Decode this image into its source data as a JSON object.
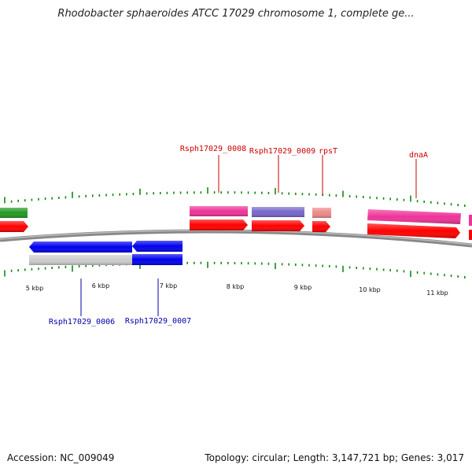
{
  "title": "Rhodobacter sphaeroides ATCC 17029 chromosome 1, complete ge...",
  "footer": {
    "accession": "Accession: NC_009049",
    "summary": "Topology: circular; Length: 3,147,721 bp; Genes: 3,017"
  },
  "colors": {
    "forward_cds": "#ff0000",
    "reverse_cds": "#0000ee",
    "forward_gene": "#ee3399",
    "rrna_like": "#7766cc",
    "trna_like": "#ee8888",
    "pseudo_gray": "#cccccc",
    "green_feature": "#229922",
    "tick_green": "#118811",
    "label_red": "#cc0000",
    "label_blue": "#0000aa",
    "backbone": "#888888"
  },
  "scale_labels": [
    "5 kbp",
    "6 kbp",
    "7 kbp",
    "8 kbp",
    "9 kbp",
    "10 kbp",
    "11 kbp"
  ],
  "features": [
    {
      "name": "green-feature",
      "strand": "forward-gene",
      "color": "green_feature"
    },
    {
      "name": "red-cds-left",
      "strand": "forward-cds",
      "color": "forward_cds"
    },
    {
      "name": "Rsph17029_0006",
      "strand": "reverse",
      "color": "reverse_cds"
    },
    {
      "name": "Rsph17029_0007",
      "strand": "reverse",
      "color": "reverse_cds"
    },
    {
      "name": "Rsph17029_0008",
      "strand": "forward",
      "color": "forward_gene"
    },
    {
      "name": "Rsph17029_0009",
      "strand": "forward",
      "color": "rrna_like"
    },
    {
      "name": "rpsT",
      "strand": "forward",
      "color": "trna_like"
    },
    {
      "name": "dnaA",
      "strand": "forward",
      "color": "forward_gene"
    }
  ],
  "gene_labels": {
    "forward": [
      "Rsph17029_0008",
      "Rsph17029_0009",
      "rpsT",
      "dnaA"
    ],
    "reverse": [
      "Rsph17029_0006",
      "Rsph17029_0007"
    ]
  }
}
